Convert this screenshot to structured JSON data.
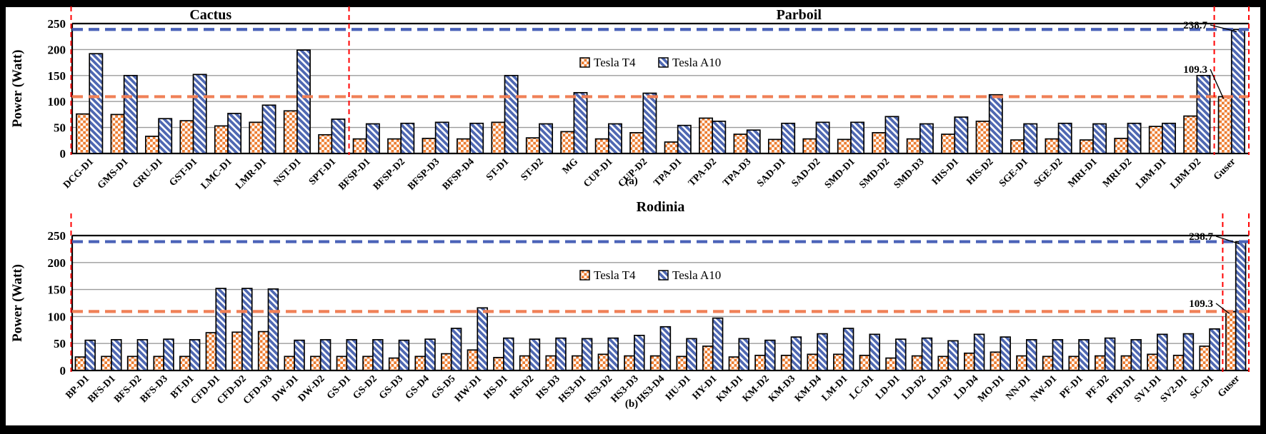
{
  "figure": {
    "captions": {
      "a": "(a)",
      "b": "(b)"
    },
    "colors": {
      "t4_orange": "#ED7D31",
      "a10_blue": "#4F68B2",
      "ref_line_blue": "#4A62B8",
      "ref_line_orange": "#F08057",
      "divider_red": "#FF0000",
      "gridline_gray": "#9B9B9B"
    }
  },
  "chart_data": [
    {
      "id": "a",
      "type": "bar",
      "ylabel": "Power (Watt)",
      "ylim": [
        0,
        250
      ],
      "yticks": [
        0,
        50,
        100,
        150,
        200,
        250
      ],
      "grid": true,
      "legend": [
        "Tesla T4",
        "Tesla A10"
      ],
      "legend_position": "inside-top-center",
      "sections": [
        {
          "label": "Cactus",
          "from": 0,
          "to": 8
        },
        {
          "label": "Parboil",
          "from": 8,
          "to": 34
        }
      ],
      "dividers": [
        0,
        8,
        33,
        34
      ],
      "ref_lines": [
        {
          "value": 238.7,
          "color_key": "ref_line_blue"
        },
        {
          "value": 109.3,
          "color_key": "ref_line_orange"
        }
      ],
      "annotations": [
        {
          "text": "238.7",
          "series": 1,
          "category": 33
        },
        {
          "text": "109.3",
          "series": 0,
          "category": 33
        }
      ],
      "categories": [
        "DCG-D1",
        "GMS-D1",
        "GRU-D1",
        "GST-D1",
        "LMC-D1",
        "LMR-D1",
        "NST-D1",
        "SPT-D1",
        "BFSP-D1",
        "BFSP-D2",
        "BFSP-D3",
        "BFSP-D4",
        "ST-D1",
        "ST-D2",
        "MG",
        "CUP-D1",
        "CUP-D2",
        "TPA-D1",
        "TPA-D2",
        "TPA-D3",
        "SAD-D1",
        "SAD-D2",
        "SMD-D1",
        "SMD-D2",
        "SMD-D3",
        "HIS-D1",
        "HIS-D2",
        "SGE-D1",
        "SGE-D2",
        "MRI-D1",
        "MRI-D2",
        "LBM-D1",
        "LBM-D2",
        "Guser"
      ],
      "series": [
        {
          "name": "Tesla T4",
          "values": [
            76,
            75,
            33,
            63,
            53,
            60,
            82,
            36,
            28,
            28,
            29,
            28,
            60,
            30,
            42,
            28,
            40,
            22,
            68,
            37,
            27,
            28,
            27,
            40,
            28,
            37,
            62,
            26,
            28,
            26,
            29,
            52,
            72,
            109.3
          ]
        },
        {
          "name": "Tesla A10",
          "values": [
            192,
            150,
            67,
            152,
            77,
            93,
            199,
            66,
            57,
            58,
            60,
            58,
            150,
            57,
            117,
            57,
            116,
            54,
            62,
            45,
            58,
            60,
            60,
            71,
            57,
            70,
            113,
            57,
            58,
            57,
            58,
            58,
            150,
            238.7
          ]
        }
      ]
    },
    {
      "id": "b",
      "type": "bar",
      "ylabel": "Power (Watt)",
      "ylim": [
        0,
        250
      ],
      "yticks": [
        0,
        50,
        100,
        150,
        200,
        250
      ],
      "grid": true,
      "legend": [
        "Tesla T4",
        "Tesla A10"
      ],
      "legend_position": "inside-top-center",
      "sections": [
        {
          "label": "Rodinia",
          "from": 0,
          "to": 45
        }
      ],
      "dividers": [
        0,
        44,
        45
      ],
      "ref_lines": [
        {
          "value": 238.7,
          "color_key": "ref_line_blue"
        },
        {
          "value": 109.3,
          "color_key": "ref_line_orange"
        }
      ],
      "annotations": [
        {
          "text": "238.7",
          "series": 1,
          "category": 44
        },
        {
          "text": "109.3",
          "series": 0,
          "category": 44
        }
      ],
      "categories": [
        "BP-D1",
        "BFS-D1",
        "BFS-D2",
        "BFS-D3",
        "BT-D1",
        "CFD-D1",
        "CFD-D2",
        "CFD-D3",
        "DW-D1",
        "DW-D2",
        "GS-D1",
        "GS-D2",
        "GS-D3",
        "GS-D4",
        "GS-D5",
        "HW-D1",
        "HS-D1",
        "HS-D2",
        "HS-D3",
        "HS3-D1",
        "HS3-D2",
        "HS3-D3",
        "HS3-D4",
        "HU-D1",
        "HY-D1",
        "KM-D1",
        "KM-D2",
        "KM-D3",
        "KM-D4",
        "LM-D1",
        "LC-D1",
        "LD-D1",
        "LD-D2",
        "LD-D3",
        "LD-D4",
        "MO-D1",
        "NN-D1",
        "NW-D1",
        "PF-D1",
        "PF-D2",
        "PFD-D1",
        "SV1-D1",
        "SV2-D1",
        "SC-D1",
        "Guser"
      ],
      "series": [
        {
          "name": "Tesla T4",
          "values": [
            25,
            26,
            26,
            26,
            26,
            70,
            71,
            72,
            26,
            26,
            26,
            26,
            23,
            26,
            31,
            38,
            24,
            27,
            27,
            27,
            30,
            27,
            27,
            26,
            45,
            25,
            28,
            28,
            30,
            30,
            28,
            23,
            27,
            26,
            32,
            34,
            27,
            26,
            26,
            27,
            27,
            30,
            28,
            45,
            109.3
          ]
        },
        {
          "name": "Tesla A10",
          "values": [
            56,
            57,
            57,
            58,
            57,
            152,
            152,
            151,
            56,
            57,
            57,
            57,
            56,
            58,
            78,
            116,
            60,
            58,
            60,
            59,
            60,
            65,
            81,
            59,
            97,
            59,
            56,
            62,
            68,
            78,
            67,
            58,
            60,
            55,
            67,
            62,
            57,
            57,
            57,
            60,
            57,
            67,
            68,
            77,
            238.7
          ]
        }
      ]
    }
  ]
}
